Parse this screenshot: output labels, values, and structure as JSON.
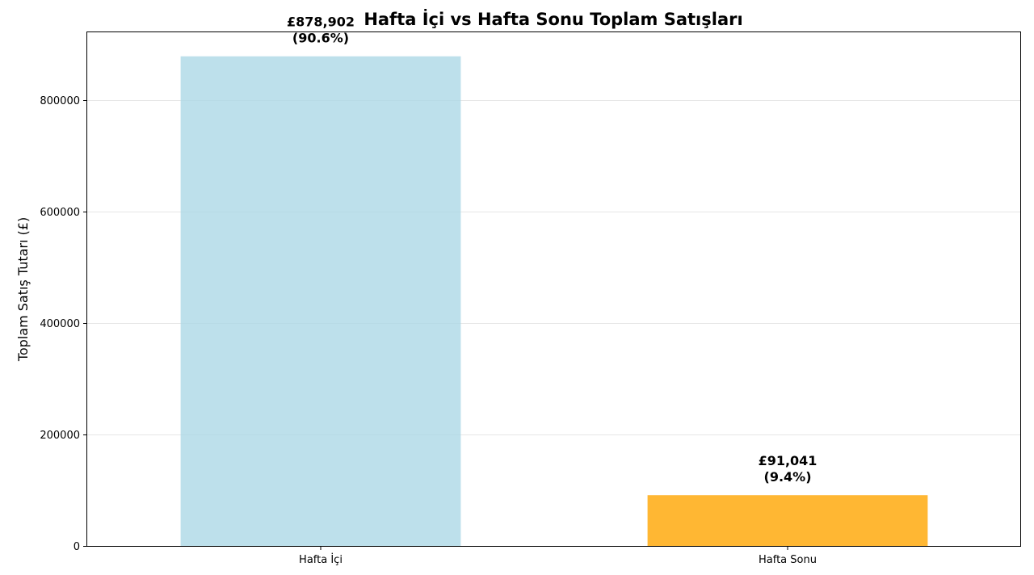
{
  "chart_data": {
    "type": "bar",
    "title": "Hafta İçi vs Hafta Sonu Toplam Satışları",
    "xlabel": "",
    "ylabel": "Toplam Satış Tutarı (£)",
    "ylim": [
      0,
      922000
    ],
    "yticks": [
      0,
      200000,
      400000,
      600000,
      800000
    ],
    "grid": true,
    "categories": [
      "Hafta İçi",
      "Hafta Sonu"
    ],
    "values": [
      878902,
      91041
    ],
    "value_labels": [
      "£878,902",
      "£91,041"
    ],
    "percent_labels": [
      "(90.6%)",
      "(9.4%)"
    ],
    "colors": [
      "#add8e6",
      "#ffa500"
    ]
  }
}
